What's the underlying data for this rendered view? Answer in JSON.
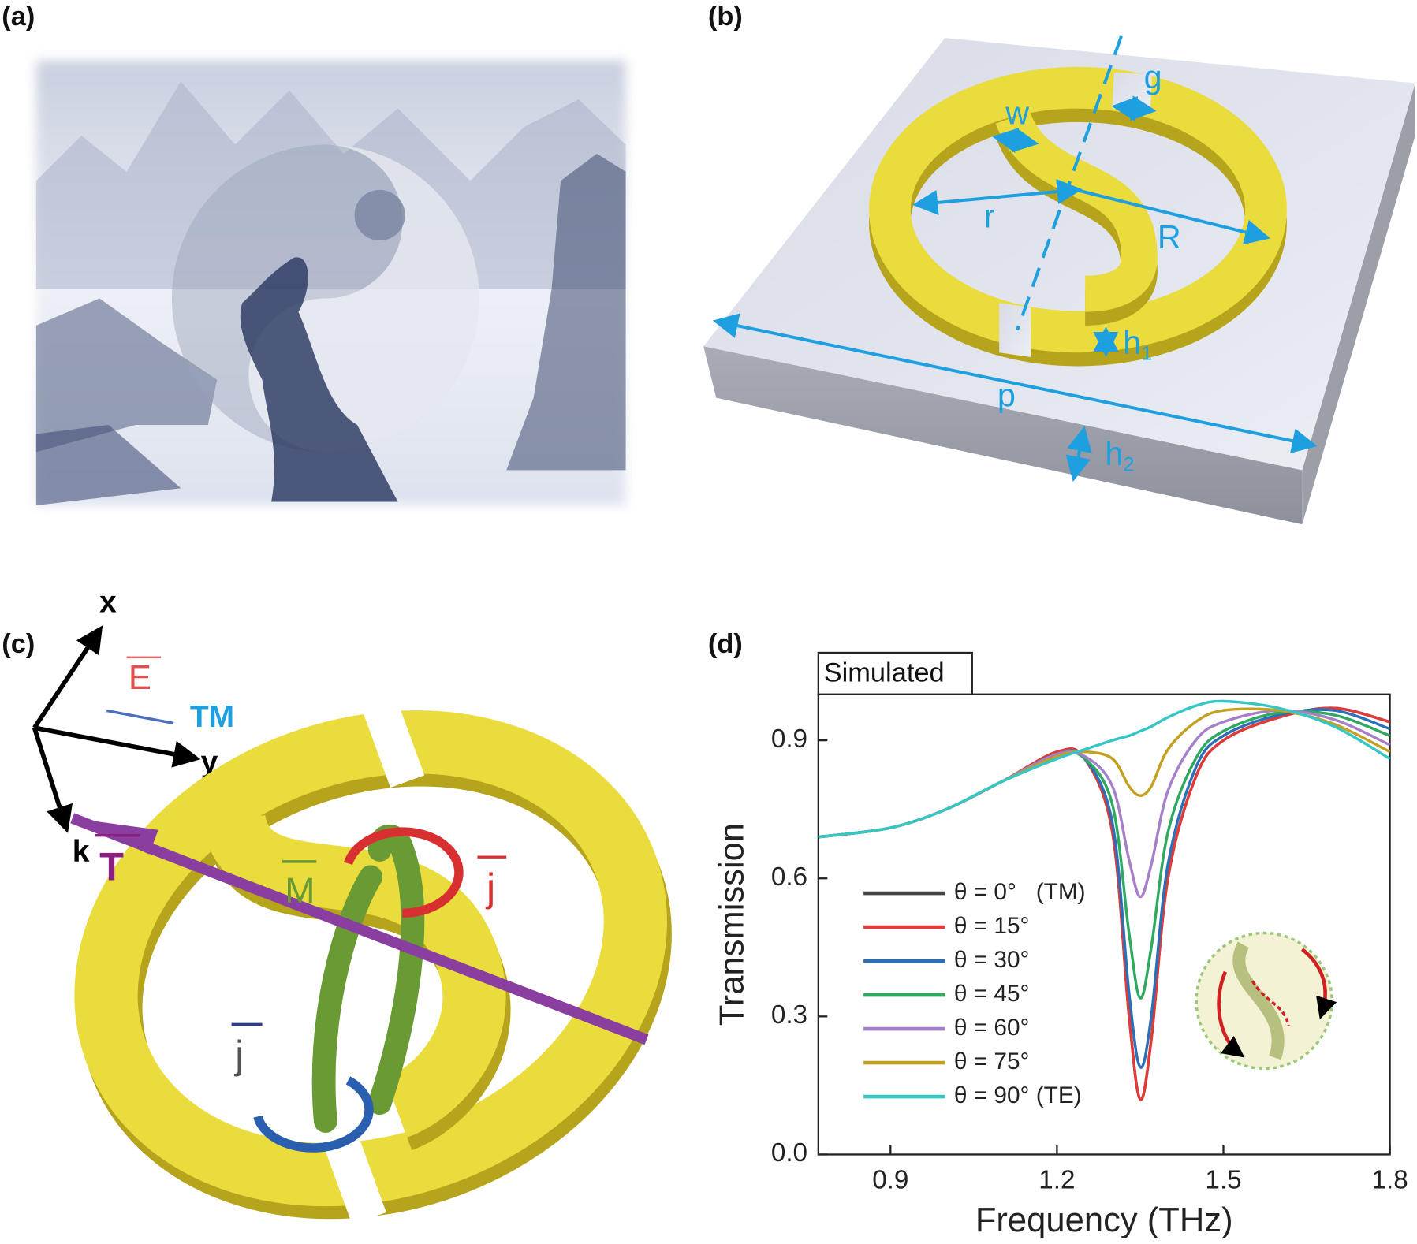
{
  "panel_labels": [
    "(a)",
    "(b)",
    "(c)",
    "(d)"
  ],
  "panel_b": {
    "g": "g",
    "w": "w",
    "r": "r",
    "R": "R",
    "p": "p",
    "h1": [
      "h",
      "1"
    ],
    "h2": [
      "h",
      "2"
    ]
  },
  "panel_c": {
    "x": "x",
    "y": "y",
    "k": "k",
    "E": "E",
    "TM": "TM",
    "M": "M",
    "j_top": "j",
    "j_bottom": "j",
    "T": "T"
  },
  "chart_data": {
    "type": "line",
    "title": "Simulated",
    "x_label": "Frequency (THz)",
    "y_label": "Transmission",
    "x": [
      0.77,
      0.9,
      1.0,
      1.1,
      1.2,
      1.25,
      1.3,
      1.33,
      1.35,
      1.37,
      1.4,
      1.45,
      1.5,
      1.6,
      1.7,
      1.8
    ],
    "series": [
      {
        "name": "θ = 0°   (TM)",
        "color": "#444444",
        "values": [
          0.69,
          0.71,
          0.75,
          0.81,
          0.87,
          0.86,
          0.7,
          0.3,
          0.12,
          0.25,
          0.6,
          0.82,
          0.9,
          0.95,
          0.97,
          0.94
        ]
      },
      {
        "name": "θ = 15°",
        "color": "#e03a3a",
        "values": [
          0.69,
          0.71,
          0.75,
          0.81,
          0.875,
          0.86,
          0.7,
          0.3,
          0.12,
          0.25,
          0.6,
          0.82,
          0.9,
          0.95,
          0.97,
          0.94
        ]
      },
      {
        "name": "θ = 30°",
        "color": "#2a6fb8",
        "values": [
          0.69,
          0.71,
          0.75,
          0.81,
          0.87,
          0.86,
          0.72,
          0.35,
          0.19,
          0.3,
          0.63,
          0.84,
          0.91,
          0.955,
          0.965,
          0.925
        ]
      },
      {
        "name": "θ = 45°",
        "color": "#2fa860",
        "values": [
          0.69,
          0.71,
          0.75,
          0.81,
          0.87,
          0.86,
          0.76,
          0.48,
          0.34,
          0.45,
          0.7,
          0.86,
          0.92,
          0.96,
          0.955,
          0.91
        ]
      },
      {
        "name": "θ = 60°",
        "color": "#a57fc8",
        "values": [
          0.69,
          0.71,
          0.75,
          0.81,
          0.87,
          0.865,
          0.8,
          0.64,
          0.56,
          0.63,
          0.79,
          0.9,
          0.94,
          0.965,
          0.945,
          0.89
        ]
      },
      {
        "name": "θ = 75°",
        "color": "#c2a020",
        "values": [
          0.69,
          0.71,
          0.75,
          0.81,
          0.865,
          0.875,
          0.86,
          0.8,
          0.78,
          0.8,
          0.88,
          0.94,
          0.965,
          0.965,
          0.935,
          0.875
        ]
      },
      {
        "name": "θ = 90° (TE)",
        "color": "#35c6c6",
        "values": [
          0.69,
          0.71,
          0.75,
          0.81,
          0.86,
          0.88,
          0.9,
          0.91,
          0.92,
          0.93,
          0.95,
          0.975,
          0.985,
          0.97,
          0.93,
          0.86
        ]
      }
    ],
    "xlim": [
      0.77,
      1.8
    ],
    "ylim": [
      0,
      1.0
    ],
    "xticks": [
      0.9,
      1.2,
      1.5,
      1.8
    ],
    "yticks": [
      {
        "value": 0,
        "label": "0.0"
      },
      0.3,
      0.6,
      0.9
    ]
  }
}
